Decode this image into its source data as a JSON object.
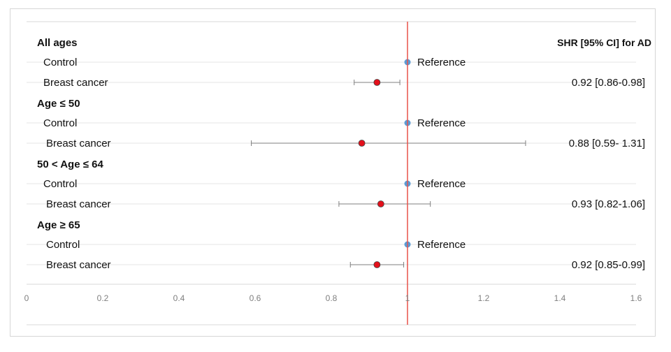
{
  "chart_data": {
    "type": "scatter",
    "title": "",
    "xlabel": "",
    "ylabel": "",
    "xlim": [
      0,
      1.6
    ],
    "x_ticks": [
      "0",
      "0.2",
      "0.4",
      "0.6",
      "0.8",
      "1",
      "1.2",
      "1.4",
      "1.6"
    ],
    "x_tick_values": [
      0,
      0.2,
      0.4,
      0.6,
      0.8,
      1.0,
      1.2,
      1.4,
      1.6
    ],
    "reference_line": 1.0,
    "column_header": "SHR [95% CI] for AD",
    "grid": false,
    "colors": {
      "control": "#5b9bd5",
      "estimate": "#e3101b",
      "reference_line": "#e8524a",
      "whisker": "#7f7f7f"
    },
    "groups": [
      {
        "label": "All ages",
        "rows": [
          {
            "label": "Control",
            "kind": "reference",
            "x": 1.0,
            "note": "Reference"
          },
          {
            "label": "Breast cancer",
            "kind": "estimate",
            "x": 0.92,
            "lo": 0.86,
            "hi": 0.98,
            "ci_text": "0.92 [0.86-0.98]"
          }
        ]
      },
      {
        "label": "Age ≤ 50",
        "rows": [
          {
            "label": "Control",
            "kind": "reference",
            "x": 1.0,
            "note": "Reference"
          },
          {
            "label": "Breast cancer",
            "kind": "estimate",
            "x": 0.88,
            "lo": 0.59,
            "hi": 1.31,
            "ci_text": "0.88 [0.59- 1.31]"
          }
        ]
      },
      {
        "label": "50 < Age ≤ 64",
        "rows": [
          {
            "label": "Control",
            "kind": "reference",
            "x": 1.0,
            "note": "Reference"
          },
          {
            "label": "Breast cancer",
            "kind": "estimate",
            "x": 0.93,
            "lo": 0.82,
            "hi": 1.06,
            "ci_text": "0.93 [0.82-1.06]"
          }
        ]
      },
      {
        "label": "Age ≥ 65",
        "rows": [
          {
            "label": "Control",
            "kind": "reference",
            "x": 1.0,
            "note": "Reference"
          },
          {
            "label": "Breast cancer",
            "kind": "estimate",
            "x": 0.92,
            "lo": 0.85,
            "hi": 0.99,
            "ci_text": "0.92 [0.85-0.99]"
          }
        ]
      }
    ]
  }
}
